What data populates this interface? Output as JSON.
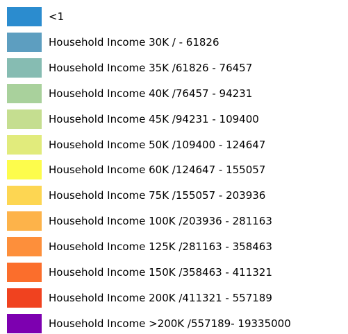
{
  "legend": {
    "items": [
      {
        "label": "<1",
        "color": "#2b8ccf"
      },
      {
        "label": "Household Income 30K / - 61826",
        "color": "#5d9ec0"
      },
      {
        "label": "Household Income 35K /61826 - 76457",
        "color": "#86bcb2"
      },
      {
        "label": "Household Income 40K /76457 - 94231",
        "color": "#a9d19c"
      },
      {
        "label": "Household Income 45K /94231 - 109400",
        "color": "#c5de90"
      },
      {
        "label": "Household Income 50K /109400 - 124647",
        "color": "#e1eb7c"
      },
      {
        "label": "Household Income 60K /124647 - 155057",
        "color": "#fdfc4c"
      },
      {
        "label": "Household Income 75K /155057 - 203936",
        "color": "#fdd652"
      },
      {
        "label": "Household Income 100K /203936 - 281163",
        "color": "#fdb34a"
      },
      {
        "label": "Household Income 125K /281163 - 358463",
        "color": "#fd8f3b"
      },
      {
        "label": "Household Income 150K /358463 - 411321",
        "color": "#fb6e2c"
      },
      {
        "label": "Household Income 200K /411321 - 557189",
        "color": "#f0421f"
      },
      {
        "label": "Household Income >200K /557189- 19335000",
        "color": "#7d00b0"
      }
    ]
  }
}
